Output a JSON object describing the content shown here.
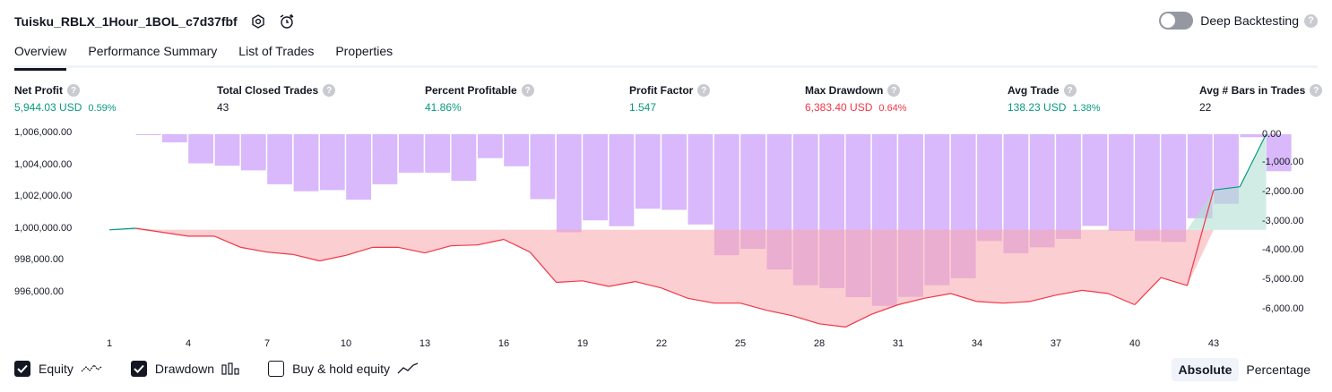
{
  "header": {
    "title": "Tuisku_RBLX_1Hour_1BOL_c7d37fbf",
    "deep_backtesting_label": "Deep Backtesting",
    "help_glyph": "?"
  },
  "tabs": [
    {
      "label": "Overview"
    },
    {
      "label": "Performance Summary"
    },
    {
      "label": "List of Trades"
    },
    {
      "label": "Properties"
    }
  ],
  "metrics": [
    {
      "label": "Net Profit",
      "value": "5,944.03 USD",
      "pct": "0.59%",
      "color": "#089981"
    },
    {
      "label": "Total Closed Trades",
      "value": "43",
      "pct": "",
      "color": "#131722"
    },
    {
      "label": "Percent Profitable",
      "value": "41.86%",
      "pct": "",
      "color": "#089981"
    },
    {
      "label": "Profit Factor",
      "value": "1.547",
      "pct": "",
      "color": "#089981"
    },
    {
      "label": "Max Drawdown",
      "value": "6,383.40 USD",
      "pct": "0.64%",
      "color": "#f23645"
    },
    {
      "label": "Avg Trade",
      "value": "138.23 USD",
      "pct": "1.38%",
      "color": "#089981"
    },
    {
      "label": "Avg # Bars in Trades",
      "value": "22",
      "pct": "",
      "color": "#131722"
    }
  ],
  "legend": {
    "equity": "Equity",
    "drawdown": "Drawdown",
    "buy_hold": "Buy & hold equity",
    "equity_checked": true,
    "drawdown_checked": true,
    "buy_hold_checked": false
  },
  "mode": {
    "absolute": "Absolute",
    "percentage": "Percentage",
    "active": "absolute"
  },
  "colors": {
    "equity_line_below": "#f23645",
    "equity_line_above": "#089981",
    "equity_fill_below": "#f7a6ad",
    "equity_fill_above": "#b2e0d4",
    "drawdown_bar": "#d9b8fb",
    "text": "#131722"
  },
  "chart_data": {
    "type": "line",
    "left_axis": {
      "ticks": [
        "1,006,000.00",
        "1,004,000.00",
        "1,002,000.00",
        "1,000,000.00",
        "998,000.00",
        "996,000.00"
      ],
      "range": [
        994700,
        1006000
      ],
      "baseline": 1000000
    },
    "right_axis": {
      "ticks": [
        "0.00",
        "-1,000.00",
        "-2,000.00",
        "-3,000.00",
        "-4,000.00",
        "-5,000.00",
        "-6,000.00"
      ],
      "range": [
        -6400,
        0
      ]
    },
    "x_ticks": [
      "1",
      "4",
      "7",
      "10",
      "13",
      "16",
      "19",
      "22",
      "25",
      "28",
      "31",
      "34",
      "37",
      "40",
      "43"
    ],
    "trades": [
      1,
      2,
      3,
      4,
      5,
      6,
      7,
      8,
      9,
      10,
      11,
      12,
      13,
      14,
      15,
      16,
      17,
      18,
      19,
      20,
      21,
      22,
      23,
      24,
      25,
      26,
      27,
      28,
      29,
      30,
      31,
      32,
      33,
      34,
      35,
      36,
      37,
      38,
      39,
      40,
      41,
      42,
      43,
      44
    ],
    "series": [
      {
        "name": "Equity",
        "values": [
          1000000,
          1000100,
          999850,
          999600,
          999600,
          998900,
          998600,
          998450,
          998050,
          998400,
          998900,
          998900,
          998550,
          999000,
          999050,
          999400,
          998600,
          996700,
          996800,
          996450,
          996750,
          996350,
          995700,
          995400,
          995400,
          994950,
          994600,
          994100,
          993900,
          994700,
          995300,
          995700,
          996000,
          995500,
          995400,
          995500,
          995900,
          996200,
          996000,
          995300,
          997000,
          996500,
          1002500,
          1002700,
          1006000
        ]
      },
      {
        "name": "Drawdown",
        "values": [
          0,
          0,
          -280,
          -1000,
          -1080,
          -1240,
          -1720,
          -1960,
          -1920,
          -2250,
          -1720,
          -1320,
          -1320,
          -1600,
          -820,
          -1100,
          -2230,
          -3370,
          -2960,
          -3160,
          -2560,
          -2600,
          -3100,
          -4160,
          -3940,
          -4650,
          -5190,
          -5290,
          -5600,
          -5900,
          -5590,
          -5190,
          -4950,
          -3670,
          -4090,
          -3890,
          -3600,
          -3150,
          -3320,
          -3670,
          -3700,
          -2890,
          -2390,
          -100,
          -1270
        ]
      }
    ]
  }
}
